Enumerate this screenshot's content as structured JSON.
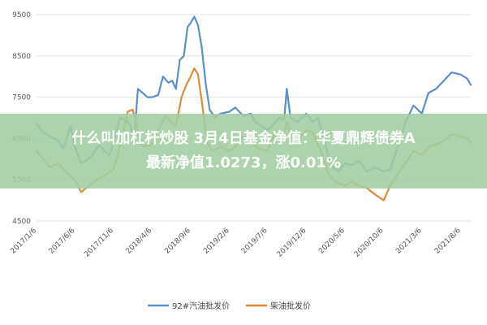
{
  "headline": {
    "line1": "什么叫加杠杆炒股 3月4日基金净值：华夏鼎辉债券A",
    "line2": "最新净值1.0273，涨0.01%"
  },
  "chart_data": {
    "type": "line",
    "ylim": [
      4500,
      9500
    ],
    "yticks": [
      "9500",
      "8500",
      "7500",
      "6500",
      "5500",
      "4500"
    ],
    "x_tick_labels": [
      "2017/1/6",
      "2017/6/6",
      "2017/11/6",
      "2018/4/6",
      "2018/9/6",
      "2019/2/6",
      "2019/7/6",
      "2019/12/6",
      "2020/5/6",
      "2020/10/6",
      "2021/3/6",
      "2021/8/6"
    ],
    "x_range": [
      "2017/1/6",
      "2021/9/15"
    ],
    "grid": "horizontal",
    "legend_position": "bottom",
    "series": [
      {
        "name": "92#汽油批发价",
        "color": "#5B8FC9",
        "points": [
          [
            "2017/1/6",
            6850
          ],
          [
            "2017/2/1",
            6650
          ],
          [
            "2017/3/1",
            6550
          ],
          [
            "2017/4/1",
            6450
          ],
          [
            "2017/4/20",
            6250
          ],
          [
            "2017/5/5",
            6500
          ],
          [
            "2017/5/20",
            6800
          ],
          [
            "2017/6/6",
            6300
          ],
          [
            "2017/7/1",
            5900
          ],
          [
            "2017/7/20",
            5950
          ],
          [
            "2017/8/15",
            6100
          ],
          [
            "2017/9/10",
            6350
          ],
          [
            "2017/10/1",
            6200
          ],
          [
            "2017/10/20",
            6100
          ],
          [
            "2017/11/6",
            6400
          ],
          [
            "2017/12/1",
            7000
          ],
          [
            "2017/12/20",
            6950
          ],
          [
            "2018/1/10",
            6850
          ],
          [
            "2018/1/25",
            6400
          ],
          [
            "2018/2/10",
            7700
          ],
          [
            "2018/3/1",
            7600
          ],
          [
            "2018/3/20",
            7500
          ],
          [
            "2018/4/6",
            7500
          ],
          [
            "2018/5/1",
            7550
          ],
          [
            "2018/5/20",
            8000
          ],
          [
            "2018/6/10",
            7850
          ],
          [
            "2018/6/25",
            7900
          ],
          [
            "2018/7/10",
            7700
          ],
          [
            "2018/7/25",
            8400
          ],
          [
            "2018/8/10",
            8500
          ],
          [
            "2018/8/25",
            9200
          ],
          [
            "2018/9/6",
            9300
          ],
          [
            "2018/9/20",
            9450
          ],
          [
            "2018/10/5",
            9250
          ],
          [
            "2018/10/20",
            8700
          ],
          [
            "2018/11/5",
            7800
          ],
          [
            "2018/11/20",
            7200
          ],
          [
            "2018/12/10",
            7000
          ],
          [
            "2019/1/1",
            7100
          ],
          [
            "2019/2/6",
            7150
          ],
          [
            "2019/3/1",
            7250
          ],
          [
            "2019/4/1",
            7050
          ],
          [
            "2019/5/1",
            7100
          ],
          [
            "2019/5/20",
            6900
          ],
          [
            "2019/6/10",
            6800
          ],
          [
            "2019/7/6",
            6700
          ],
          [
            "2019/8/1",
            6850
          ],
          [
            "2019/8/20",
            7000
          ],
          [
            "2019/9/10",
            6950
          ],
          [
            "2019/9/20",
            7700
          ],
          [
            "2019/10/5",
            7000
          ],
          [
            "2019/11/1",
            6900
          ],
          [
            "2019/12/6",
            7100
          ],
          [
            "2020/1/1",
            6900
          ],
          [
            "2020/1/20",
            7000
          ],
          [
            "2020/2/10",
            6600
          ],
          [
            "2020/3/1",
            6100
          ],
          [
            "2020/3/20",
            5800
          ],
          [
            "2020/4/10",
            5700
          ],
          [
            "2020/5/6",
            5900
          ],
          [
            "2020/6/1",
            5850
          ],
          [
            "2020/7/1",
            5950
          ],
          [
            "2020/8/1",
            5700
          ],
          [
            "2020/9/1",
            5800
          ],
          [
            "2020/10/6",
            5700
          ],
          [
            "2020/11/1",
            5750
          ],
          [
            "2020/12/1",
            6300
          ],
          [
            "2021/1/1",
            6900
          ],
          [
            "2021/2/1",
            7300
          ],
          [
            "2021/3/6",
            7100
          ],
          [
            "2021/4/1",
            7600
          ],
          [
            "2021/5/1",
            7700
          ],
          [
            "2021/6/1",
            7900
          ],
          [
            "2021/7/1",
            8100
          ],
          [
            "2021/8/6",
            8050
          ],
          [
            "2021/9/1",
            7950
          ],
          [
            "2021/9/15",
            7800
          ]
        ]
      },
      {
        "name": "柴油批发价",
        "color": "#E0893A",
        "points": [
          [
            "2017/1/6",
            6200
          ],
          [
            "2017/2/1",
            6000
          ],
          [
            "2017/3/1",
            5800
          ],
          [
            "2017/4/1",
            5900
          ],
          [
            "2017/5/1",
            5700
          ],
          [
            "2017/6/6",
            5500
          ],
          [
            "2017/7/1",
            5200
          ],
          [
            "2017/8/1",
            5350
          ],
          [
            "2017/9/1",
            5500
          ],
          [
            "2017/10/1",
            5600
          ],
          [
            "2017/11/6",
            5750
          ],
          [
            "2017/12/1",
            6300
          ],
          [
            "2018/1/1",
            7150
          ],
          [
            "2018/1/20",
            7200
          ],
          [
            "2018/2/10",
            6700
          ],
          [
            "2018/3/1",
            6300
          ],
          [
            "2018/4/6",
            6350
          ],
          [
            "2018/5/1",
            6700
          ],
          [
            "2018/6/1",
            7050
          ],
          [
            "2018/6/20",
            6900
          ],
          [
            "2018/7/10",
            6800
          ],
          [
            "2018/8/1",
            7500
          ],
          [
            "2018/8/20",
            7800
          ],
          [
            "2018/9/6",
            8000
          ],
          [
            "2018/9/20",
            8200
          ],
          [
            "2018/10/5",
            8050
          ],
          [
            "2018/10/20",
            7400
          ],
          [
            "2018/11/10",
            6400
          ],
          [
            "2018/12/1",
            6200
          ],
          [
            "2019/1/1",
            6300
          ],
          [
            "2019/2/6",
            6200
          ],
          [
            "2019/3/1",
            6300
          ],
          [
            "2019/4/1",
            6550
          ],
          [
            "2019/5/1",
            6400
          ],
          [
            "2019/6/1",
            6250
          ],
          [
            "2019/7/6",
            6200
          ],
          [
            "2019/8/1",
            6600
          ],
          [
            "2019/9/1",
            6450
          ],
          [
            "2019/9/20",
            6900
          ],
          [
            "2019/10/10",
            6500
          ],
          [
            "2019/11/1",
            6450
          ],
          [
            "2019/12/6",
            6700
          ],
          [
            "2020/1/1",
            6650
          ],
          [
            "2020/2/1",
            6200
          ],
          [
            "2020/3/1",
            5650
          ],
          [
            "2020/4/1",
            5450
          ],
          [
            "2020/5/6",
            5350
          ],
          [
            "2020/6/1",
            5450
          ],
          [
            "2020/7/1",
            5350
          ],
          [
            "2020/8/1",
            5300
          ],
          [
            "2020/9/1",
            5150
          ],
          [
            "2020/10/6",
            5000
          ],
          [
            "2020/11/1",
            5350
          ],
          [
            "2020/12/1",
            5650
          ],
          [
            "2021/1/1",
            5900
          ],
          [
            "2021/2/1",
            6200
          ],
          [
            "2021/3/6",
            6100
          ],
          [
            "2021/4/1",
            6300
          ],
          [
            "2021/5/1",
            6350
          ],
          [
            "2021/6/1",
            6450
          ],
          [
            "2021/7/1",
            6600
          ],
          [
            "2021/8/6",
            6550
          ],
          [
            "2021/9/1",
            6500
          ],
          [
            "2021/9/15",
            6400
          ]
        ]
      }
    ]
  }
}
